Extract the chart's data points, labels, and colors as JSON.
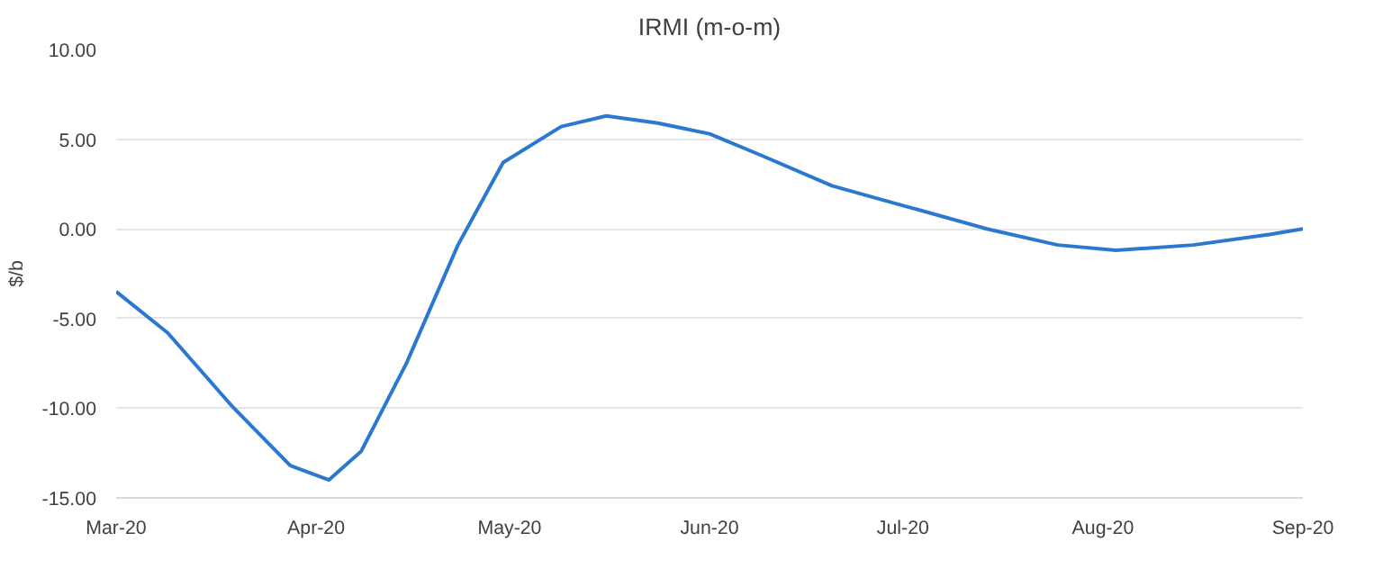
{
  "chart_data": {
    "type": "line",
    "title": "IRMI (m-o-m)",
    "ylabel": "$/b",
    "x": [
      "2020-03-01",
      "2020-03-09",
      "2020-03-19",
      "2020-03-28",
      "2020-04-03",
      "2020-04-08",
      "2020-04-15",
      "2020-04-23",
      "2020-04-30",
      "2020-05-09",
      "2020-05-16",
      "2020-05-24",
      "2020-06-01",
      "2020-06-09",
      "2020-06-20",
      "2020-07-01",
      "2020-07-14",
      "2020-07-25",
      "2020-08-03",
      "2020-08-15",
      "2020-08-27",
      "2020-09-01"
    ],
    "series": [
      {
        "color": "#2a78cf",
        "values": [
          -3.5,
          -5.8,
          -9.9,
          -13.2,
          -14.0,
          -12.4,
          -7.5,
          -0.9,
          3.7,
          5.7,
          6.3,
          5.9,
          5.3,
          4.1,
          2.4,
          1.3,
          0.0,
          -0.9,
          -1.2,
          -0.9,
          -0.3,
          0.0
        ]
      }
    ],
    "xlim": [
      "2020-03-01",
      "2020-09-01"
    ],
    "xticks": [
      {
        "value": "2020-03-01",
        "label": "Mar-20"
      },
      {
        "value": "2020-04-01",
        "label": "Apr-20"
      },
      {
        "value": "2020-05-01",
        "label": "May-20"
      },
      {
        "value": "2020-06-01",
        "label": "Jun-20"
      },
      {
        "value": "2020-07-01",
        "label": "Jul-20"
      },
      {
        "value": "2020-08-01",
        "label": "Aug-20"
      },
      {
        "value": "2020-09-01",
        "label": "Sep-20"
      }
    ],
    "ylim": [
      -15,
      10
    ],
    "yticks": [
      {
        "value": -15,
        "label": "-15.00"
      },
      {
        "value": -10,
        "label": "-10.00"
      },
      {
        "value": -5,
        "label": "-5.00"
      },
      {
        "value": 0,
        "label": "0.00"
      },
      {
        "value": 5,
        "label": "5.00"
      },
      {
        "value": 10,
        "label": "10.00"
      }
    ],
    "grid": "y",
    "marker": "none",
    "line_style": "solid"
  }
}
